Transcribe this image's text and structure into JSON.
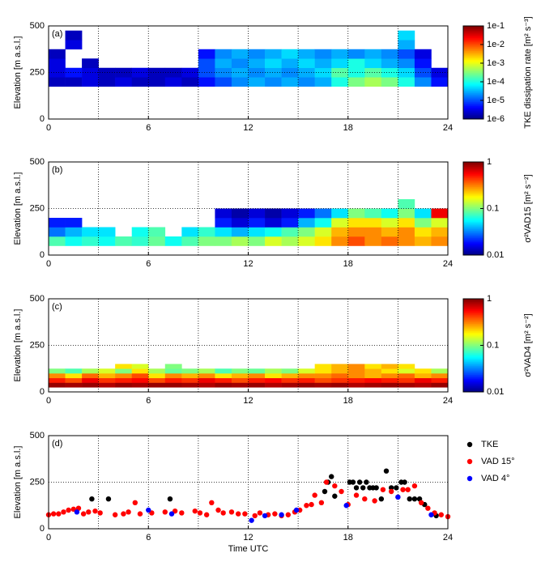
{
  "chart_data": [
    {
      "type": "heatmap",
      "annotation": "(a)",
      "ylabel": "Elevation [m a.s.l.]",
      "xlim": [
        0,
        24
      ],
      "xticks": [
        0,
        6,
        12,
        18,
        24
      ],
      "xminor": [
        3,
        9,
        15,
        21
      ],
      "ylim": [
        0,
        500
      ],
      "yticks": [
        0,
        250,
        500
      ],
      "xbins": [
        0,
        1,
        2,
        3,
        4,
        5,
        6,
        7,
        8,
        9,
        10,
        11,
        12,
        13,
        14,
        15,
        16,
        17,
        18,
        19,
        20,
        21,
        22,
        23,
        24
      ],
      "ybins": [
        175,
        225,
        275,
        325,
        375,
        425,
        475
      ],
      "values": [
        [
          2e-06,
          2e-06,
          3e-06,
          2e-06,
          3e-06,
          2e-06,
          2e-06,
          3e-06,
          2e-06,
          5e-06,
          1e-05,
          2e-05,
          3e-05,
          2e-05,
          3e-05,
          2e-05,
          3e-05,
          0.0001,
          0.0003,
          0.0005,
          0.0003,
          0.0001,
          2e-05,
          5e-06
        ],
        [
          3e-06,
          5e-06,
          3e-06,
          2e-06,
          2e-06,
          3e-06,
          2e-06,
          2e-06,
          3e-06,
          1e-05,
          2e-05,
          3e-05,
          2e-05,
          3e-05,
          2e-05,
          3e-05,
          5e-05,
          0.0002,
          0.0001,
          0.0002,
          0.0001,
          5e-05,
          1e-05,
          3e-06
        ],
        [
          3e-06,
          null,
          2e-06,
          null,
          null,
          null,
          null,
          null,
          null,
          1e-05,
          3e-05,
          2e-05,
          3e-05,
          5e-05,
          3e-05,
          5e-05,
          3e-05,
          5e-05,
          0.0001,
          5e-05,
          3e-05,
          2e-05,
          5e-06,
          null
        ],
        [
          2e-06,
          null,
          null,
          null,
          null,
          null,
          null,
          null,
          null,
          5e-06,
          2e-05,
          3e-05,
          2e-05,
          3e-05,
          5e-05,
          3e-05,
          2e-05,
          3e-05,
          2e-05,
          3e-05,
          2e-05,
          1e-05,
          3e-06,
          null
        ],
        [
          null,
          3e-06,
          null,
          null,
          null,
          null,
          null,
          null,
          null,
          null,
          null,
          null,
          null,
          null,
          null,
          null,
          null,
          null,
          null,
          null,
          null,
          3e-05,
          null,
          null
        ],
        [
          null,
          2e-06,
          null,
          null,
          null,
          null,
          null,
          null,
          null,
          null,
          null,
          null,
          null,
          null,
          null,
          null,
          null,
          null,
          null,
          null,
          null,
          5e-05,
          null,
          null
        ]
      ],
      "colormap": "jet",
      "clog": true,
      "clim": [
        1e-06,
        0.1
      ],
      "cticks": [
        {
          "value": 1e-06,
          "label": "1e-6"
        },
        {
          "value": 1e-05,
          "label": "1e-5"
        },
        {
          "value": 0.0001,
          "label": "1e-4"
        },
        {
          "value": 0.001,
          "label": "1e-3"
        },
        {
          "value": 0.01,
          "label": "1e-2"
        },
        {
          "value": 0.1,
          "label": "1e-1"
        }
      ],
      "clabel": "TKE dissipation rate [m² s⁻³]"
    },
    {
      "type": "heatmap",
      "annotation": "(b)",
      "ylabel": "Elevation [m a.s.l.]",
      "xlim": [
        0,
        24
      ],
      "xticks": [
        0,
        6,
        12,
        18,
        24
      ],
      "xminor": [
        3,
        9,
        15,
        21
      ],
      "ylim": [
        0,
        500
      ],
      "yticks": [
        0,
        250,
        500
      ],
      "xbins": [
        0,
        1,
        2,
        3,
        4,
        5,
        6,
        7,
        8,
        9,
        10,
        11,
        12,
        13,
        14,
        15,
        16,
        17,
        18,
        19,
        20,
        21,
        22,
        23,
        24
      ],
      "ybins": [
        50,
        100,
        150,
        200,
        250,
        300
      ],
      "values": [
        [
          0.08,
          0.06,
          0.07,
          0.06,
          0.08,
          0.07,
          0.09,
          0.06,
          0.08,
          0.1,
          0.1,
          0.12,
          0.1,
          0.15,
          0.12,
          0.15,
          0.2,
          0.3,
          0.4,
          0.3,
          0.35,
          0.3,
          0.25,
          0.3
        ],
        [
          0.03,
          0.04,
          0.05,
          0.05,
          null,
          0.06,
          0.08,
          null,
          0.05,
          0.07,
          0.05,
          0.04,
          0.05,
          0.06,
          0.08,
          0.1,
          0.15,
          0.25,
          0.3,
          0.3,
          0.25,
          0.3,
          0.2,
          0.25
        ],
        [
          0.02,
          0.02,
          null,
          null,
          null,
          null,
          null,
          null,
          null,
          null,
          0.02,
          0.015,
          0.02,
          0.015,
          0.02,
          0.04,
          0.06,
          0.15,
          0.2,
          0.2,
          0.15,
          0.2,
          0.1,
          0.15
        ],
        [
          null,
          null,
          null,
          null,
          null,
          null,
          null,
          null,
          null,
          null,
          0.015,
          0.012,
          0.015,
          0.012,
          0.015,
          0.02,
          0.03,
          0.05,
          0.1,
          0.08,
          0.06,
          0.1,
          0.05,
          0.6
        ],
        [
          null,
          null,
          null,
          null,
          null,
          null,
          null,
          null,
          null,
          null,
          null,
          null,
          null,
          null,
          null,
          null,
          null,
          null,
          null,
          null,
          null,
          0.08,
          null,
          null
        ]
      ],
      "colormap": "jet",
      "clog": true,
      "clim": [
        0.01,
        1
      ],
      "cticks": [
        0.01,
        0.1,
        1
      ],
      "clabel": "σ²VAD15 [m² s⁻²]"
    },
    {
      "type": "heatmap",
      "annotation": "(c)",
      "ylabel": "Elevation [m a.s.l.]",
      "xlim": [
        0,
        24
      ],
      "xticks": [
        0,
        6,
        12,
        18,
        24
      ],
      "xminor": [
        3,
        9,
        15,
        21
      ],
      "ylim": [
        0,
        500
      ],
      "yticks": [
        0,
        250,
        500
      ],
      "xbins": [
        0,
        1,
        2,
        3,
        4,
        5,
        6,
        7,
        8,
        9,
        10,
        11,
        12,
        13,
        14,
        15,
        16,
        17,
        18,
        19,
        20,
        21,
        22,
        23,
        24
      ],
      "ybins": [
        25,
        50,
        75,
        100,
        125,
        150
      ],
      "values": [
        [
          0.9,
          0.85,
          0.9,
          0.8,
          0.9,
          0.85,
          0.9,
          0.9,
          0.85,
          0.8,
          0.9,
          0.85,
          0.9,
          0.8,
          0.85,
          0.9,
          0.85,
          0.9,
          0.8,
          0.85,
          0.9,
          0.85,
          0.8,
          0.9
        ],
        [
          0.5,
          0.4,
          0.6,
          0.45,
          0.5,
          0.55,
          0.4,
          0.5,
          0.45,
          0.6,
          0.5,
          0.4,
          0.5,
          0.55,
          0.45,
          0.5,
          0.4,
          0.45,
          0.5,
          0.55,
          0.5,
          0.45,
          0.6,
          0.5
        ],
        [
          0.3,
          0.2,
          0.35,
          0.25,
          0.3,
          0.4,
          0.2,
          0.3,
          0.25,
          0.3,
          0.2,
          0.25,
          0.3,
          0.2,
          0.25,
          0.3,
          0.3,
          0.35,
          0.3,
          0.25,
          0.3,
          0.35,
          0.25,
          0.3
        ],
        [
          0.1,
          0.08,
          0.12,
          0.15,
          0.1,
          0.2,
          0.12,
          0.09,
          0.1,
          0.12,
          0.08,
          0.1,
          0.09,
          0.12,
          0.1,
          0.15,
          0.2,
          0.25,
          0.3,
          0.25,
          0.2,
          0.15,
          0.2,
          0.12
        ],
        [
          null,
          null,
          null,
          null,
          0.2,
          0.15,
          null,
          0.1,
          null,
          null,
          null,
          null,
          null,
          null,
          null,
          null,
          0.2,
          0.25,
          0.3,
          0.2,
          0.25,
          0.2,
          null,
          null
        ]
      ],
      "colormap": "jet",
      "clog": true,
      "clim": [
        0.01,
        1
      ],
      "cticks": [
        0.01,
        0.1,
        1
      ],
      "clabel": "σ²VAD4 [m² s⁻²]"
    },
    {
      "type": "scatter",
      "annotation": "(d)",
      "ylabel": "Elevation [m a.s.l.]",
      "xlabel": "Time UTC",
      "xlim": [
        0,
        24
      ],
      "xticks": [
        0,
        6,
        12,
        18,
        24
      ],
      "xminor": [
        3,
        9,
        15,
        21
      ],
      "ylim": [
        0,
        500
      ],
      "yticks": [
        0,
        250,
        500
      ],
      "series": [
        {
          "name": "TKE",
          "color": "#000000",
          "x": [
            2.6,
            3.6,
            7.3,
            16.6,
            16.8,
            17,
            17.2,
            18.1,
            18.3,
            18.5,
            18.7,
            18.9,
            19.1,
            19.3,
            19.5,
            19.7,
            20,
            20.3,
            20.6,
            20.9,
            21.2,
            21.4,
            21.7,
            22,
            22.3,
            22.6,
            23.3
          ],
          "values": [
            160,
            160,
            160,
            200,
            250,
            280,
            175,
            250,
            250,
            220,
            250,
            220,
            250,
            220,
            220,
            220,
            160,
            310,
            220,
            220,
            250,
            250,
            160,
            160,
            160,
            130,
            70
          ]
        },
        {
          "name": "VAD 15°",
          "color": "#ff0000",
          "x": [
            0,
            0.3,
            0.6,
            0.9,
            1.2,
            1.5,
            1.8,
            2.1,
            2.4,
            2.8,
            3.1,
            4,
            4.5,
            4.8,
            5.2,
            5.5,
            6.2,
            7,
            7.6,
            8,
            8.8,
            9.1,
            9.5,
            9.8,
            10.2,
            10.5,
            11,
            11.4,
            11.8,
            12.4,
            12.7,
            13.2,
            13.6,
            14,
            14.4,
            14.8,
            15.1,
            15.5,
            15.8,
            16,
            16.4,
            16.7,
            17.2,
            17.6,
            18,
            18.5,
            19,
            19.6,
            20.1,
            20.6,
            21,
            21.3,
            21.6,
            22,
            22.4,
            22.8,
            23.2,
            23.6,
            24
          ],
          "values": [
            75,
            80,
            80,
            90,
            100,
            105,
            110,
            80,
            90,
            95,
            85,
            75,
            80,
            90,
            140,
            80,
            85,
            90,
            95,
            85,
            95,
            85,
            75,
            140,
            100,
            85,
            90,
            80,
            80,
            70,
            85,
            75,
            80,
            70,
            75,
            90,
            100,
            125,
            130,
            180,
            140,
            250,
            230,
            200,
            130,
            180,
            160,
            150,
            210,
            200,
            170,
            210,
            210,
            230,
            140,
            110,
            85,
            75,
            65
          ]
        },
        {
          "name": "VAD 4°",
          "color": "#0000ff",
          "x": [
            1.7,
            6,
            7.4,
            12.2,
            13,
            14,
            14.9,
            17.9,
            21,
            23
          ],
          "values": [
            90,
            100,
            80,
            45,
            70,
            75,
            100,
            125,
            170,
            75
          ]
        }
      ]
    }
  ]
}
